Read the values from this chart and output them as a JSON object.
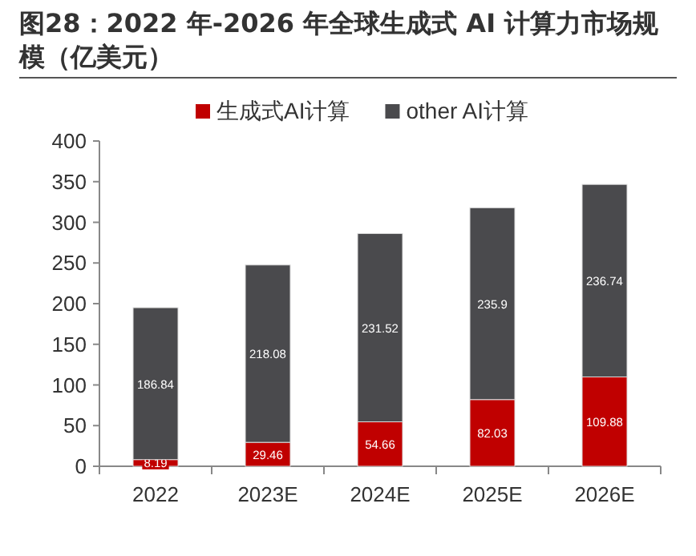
{
  "chart_data": {
    "type": "bar",
    "title": "图28：2022 年-2026 年全球生成式 AI 计算力市场规模（亿美元）",
    "stacked": true,
    "data_labels": true,
    "legend": "top",
    "categories": [
      "2022",
      "2023E",
      "2024E",
      "2025E",
      "2026E"
    ],
    "ylim": [
      0,
      400
    ],
    "yticks": [
      0,
      50,
      100,
      150,
      200,
      250,
      300,
      350,
      400
    ],
    "series": [
      {
        "name": "生成式AI计算",
        "color": "#c00000",
        "values": [
          8.19,
          29.46,
          54.66,
          82.03,
          109.88
        ]
      },
      {
        "name": "other AI计算",
        "color": "#4a4a4d",
        "values": [
          186.84,
          218.08,
          231.52,
          235.9,
          236.74
        ]
      }
    ]
  }
}
